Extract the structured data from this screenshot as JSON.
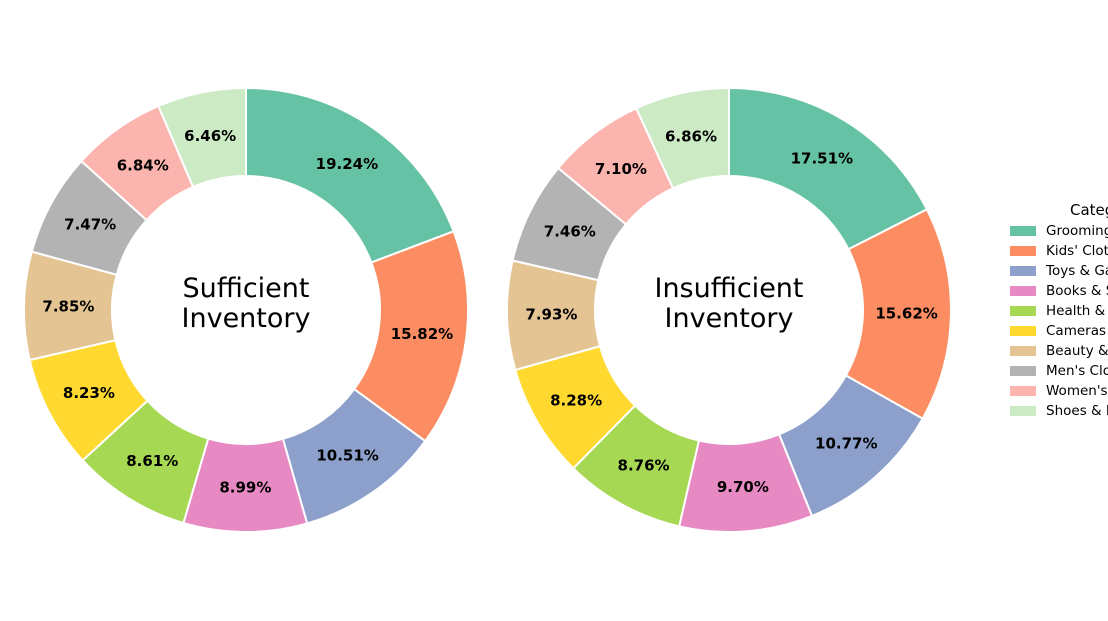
{
  "chart_data": {
    "type": "pie",
    "legend": {
      "title": "Category",
      "placement": "right",
      "entries": [
        {
          "label": "Grooming",
          "color": "#66c2a5"
        },
        {
          "label": "Kids' Clothing",
          "color": "#fc8d62"
        },
        {
          "label": "Toys & Games",
          "color": "#8da0cb"
        },
        {
          "label": "Books & Stationery",
          "color": "#e78ac3"
        },
        {
          "label": "Health & Supplements",
          "color": "#a6d854"
        },
        {
          "label": "Cameras",
          "color": "#ffd92f"
        },
        {
          "label": "Beauty & Personal Care",
          "color": "#e5c494"
        },
        {
          "label": "Men's Clothing",
          "color": "#b3b3b3"
        },
        {
          "label": "Women's Clothing",
          "color": "#fbb4ae"
        },
        {
          "label": "Shoes & Footwear",
          "color": "#ccebc5"
        }
      ]
    },
    "charts": [
      {
        "center_label_lines": [
          "Sufficient",
          "Inventory"
        ],
        "values": [
          19.24,
          15.82,
          10.51,
          8.99,
          8.61,
          8.23,
          7.85,
          7.47,
          6.84,
          6.46
        ],
        "labels": [
          "19.24%",
          "15.82%",
          "10.51%",
          "8.99%",
          "8.61%",
          "8.23%",
          "7.85%",
          "7.47%",
          "6.84%",
          "6.46%"
        ]
      },
      {
        "center_label_lines": [
          "Insufficient",
          "Inventory"
        ],
        "values": [
          17.51,
          15.62,
          10.77,
          9.7,
          8.76,
          8.28,
          7.93,
          7.46,
          7.1,
          6.86
        ],
        "labels": [
          "17.51%",
          "15.62%",
          "10.77%",
          "9.70%",
          "8.76%",
          "8.28%",
          "7.93%",
          "7.46%",
          "7.10%",
          "6.86%"
        ]
      }
    ]
  }
}
